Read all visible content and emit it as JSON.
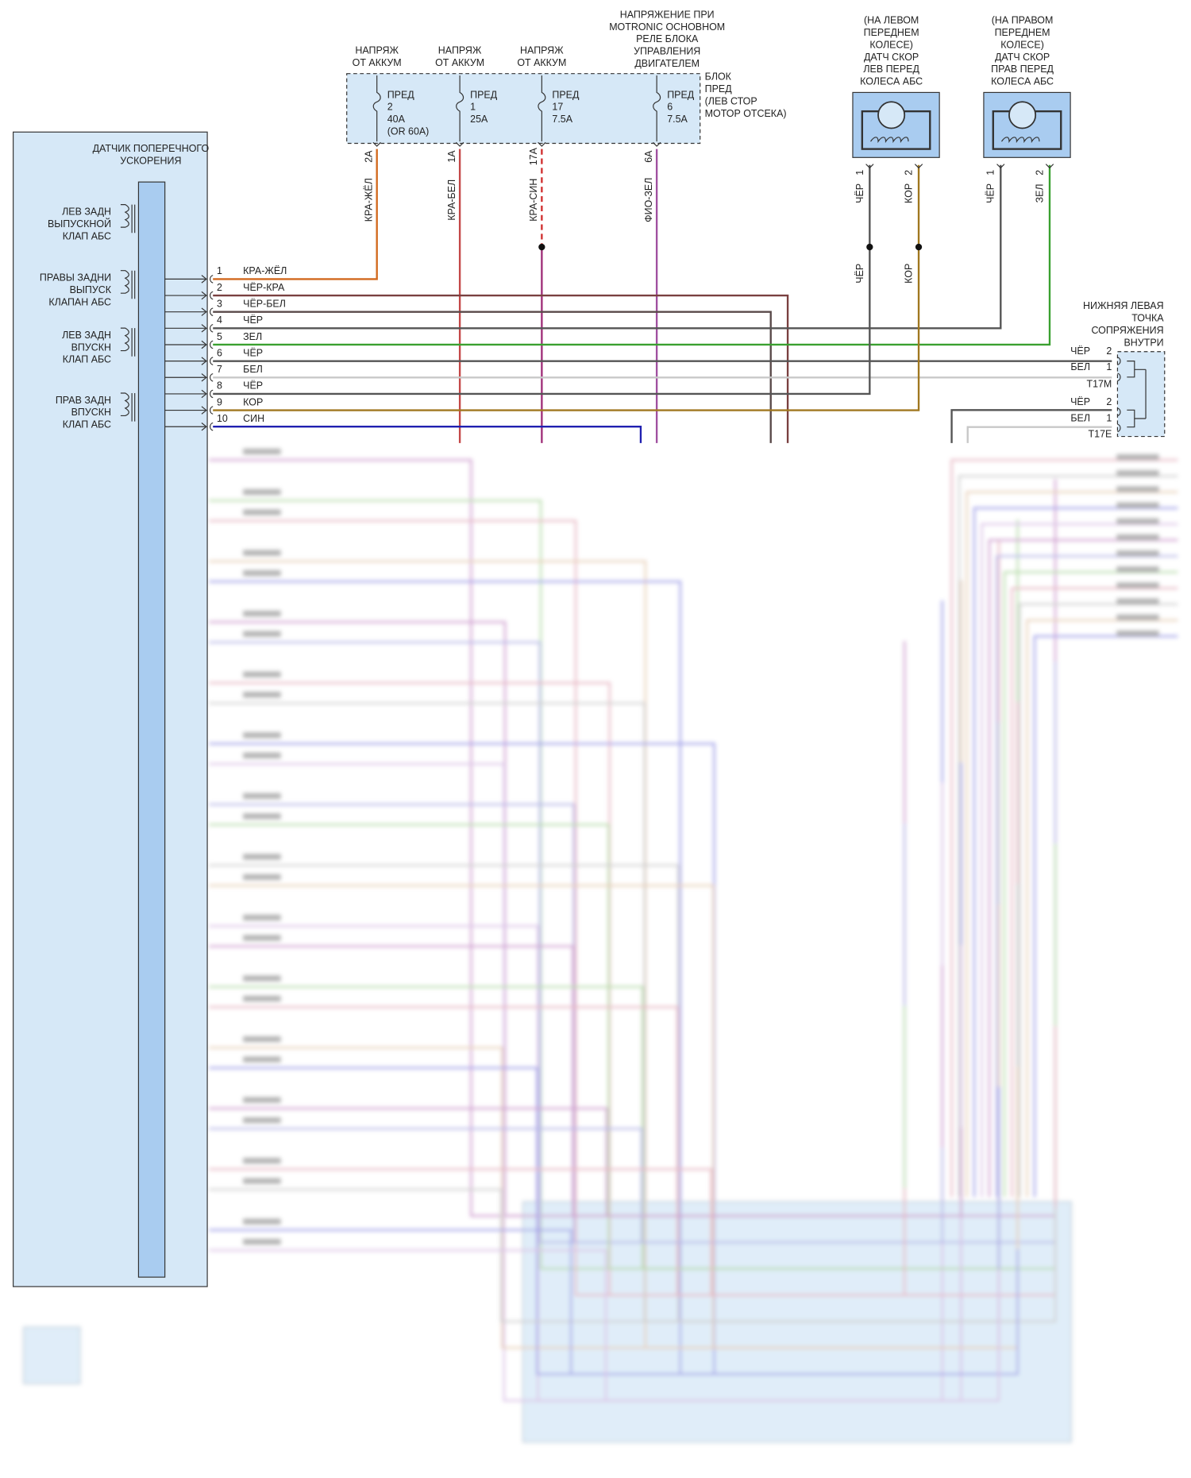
{
  "fuse_block": {
    "label": [
      "БЛОК",
      "ПРЕД",
      "(ЛЕВ СТОР",
      "МОТОР ОТСЕКА)"
    ],
    "fuses": [
      {
        "source": [
          "НАПРЯЖ",
          "ОТ АККУМ"
        ],
        "lines": [
          "ПРЕД",
          "2",
          "40A",
          "(OR 60A)"
        ],
        "pin": "2A",
        "wire": "КРА-ЖЁЛ"
      },
      {
        "source": [
          "НАПРЯЖ",
          "ОТ АККУМ"
        ],
        "lines": [
          "ПРЕД",
          "1",
          "25A"
        ],
        "pin": "1A",
        "wire": "КРА-БЕЛ"
      },
      {
        "source": [
          "НАПРЯЖ",
          "ОТ АККУМ"
        ],
        "lines": [
          "ПРЕД",
          "17",
          "7.5A"
        ],
        "pin": "17A",
        "wire": "КРА-СИН"
      },
      {
        "source": [
          "НАПРЯЖЕНИЕ ПРИ",
          "MOTRONIC ОСНОВНОМ",
          "РЕЛЕ БЛОКА",
          "УПРАВЛЕНИЯ",
          "ДВИГАТЕЛЕМ"
        ],
        "lines": [
          "ПРЕД",
          "6",
          "7.5A"
        ],
        "pin": "6A",
        "wire": "ФИО-ЗЕЛ"
      }
    ]
  },
  "module": {
    "title": [
      "ДАТЧИК ПОПЕРЕЧНОГО",
      "УСКОРЕНИЯ"
    ],
    "valves": [
      [
        "ЛЕВ ЗАДН",
        "ВЫПУСКНОЙ",
        "КЛАП АБС"
      ],
      [
        "ПРАВЫ ЗАДНИ",
        "ВЫПУСК",
        "КЛАПАН АБС"
      ],
      [
        "ЛЕВ ЗАДН",
        "ВПУСКН",
        "КЛАП АБС"
      ],
      [
        "ПРАВ ЗАДН",
        "ВПУСКН",
        "КЛАП АБС"
      ]
    ]
  },
  "pins": [
    {
      "num": "1",
      "wire": "КРА-ЖЁЛ"
    },
    {
      "num": "2",
      "wire": "ЧЁР-КРА"
    },
    {
      "num": "3",
      "wire": "ЧЁР-БЕЛ"
    },
    {
      "num": "4",
      "wire": "ЧЁР"
    },
    {
      "num": "5",
      "wire": "ЗЕЛ"
    },
    {
      "num": "6",
      "wire": "ЧЁР"
    },
    {
      "num": "7",
      "wire": "БЕЛ"
    },
    {
      "num": "8",
      "wire": "ЧЁР"
    },
    {
      "num": "9",
      "wire": "КОР"
    },
    {
      "num": "10",
      "wire": "СИН"
    }
  ],
  "sensors": [
    {
      "caption": [
        "(НА ЛЕВОМ",
        "ПЕРЕДНЕМ",
        "КОЛЕСЕ)",
        "ДАТЧ СКОР",
        "ЛЕВ ПЕРЕД",
        "КОЛЕСА АБС"
      ],
      "pins": [
        {
          "num": "1",
          "wire": "ЧЁР",
          "lower": "ЧЁР"
        },
        {
          "num": "2",
          "wire": "КОР",
          "lower": "КОР"
        }
      ]
    },
    {
      "caption": [
        "(НА ПРАВОМ",
        "ПЕРЕДНЕМ",
        "КОЛЕСЕ)",
        "ДАТЧ СКОР",
        "ПРАВ ПЕРЕД",
        "КОЛЕСА АБС"
      ],
      "pins": [
        {
          "num": "1",
          "wire": "ЧЁР"
        },
        {
          "num": "2",
          "wire": "ЗЕЛ"
        }
      ]
    }
  ],
  "junction": {
    "title": [
      "НИЖНЯЯ ЛЕВАЯ",
      "ТОЧКА",
      "СОПРЯЖЕНИЯ",
      "ВНУТРИ"
    ],
    "connectors": [
      {
        "name": "T17M",
        "pins": [
          {
            "wire": "ЧЁР",
            "num": "2"
          },
          {
            "wire": "БЕЛ",
            "num": "1"
          }
        ]
      },
      {
        "name": "T17E",
        "pins": [
          {
            "wire": "ЧЁР",
            "num": "2"
          },
          {
            "wire": "БЕЛ",
            "num": "1"
          }
        ]
      }
    ]
  }
}
